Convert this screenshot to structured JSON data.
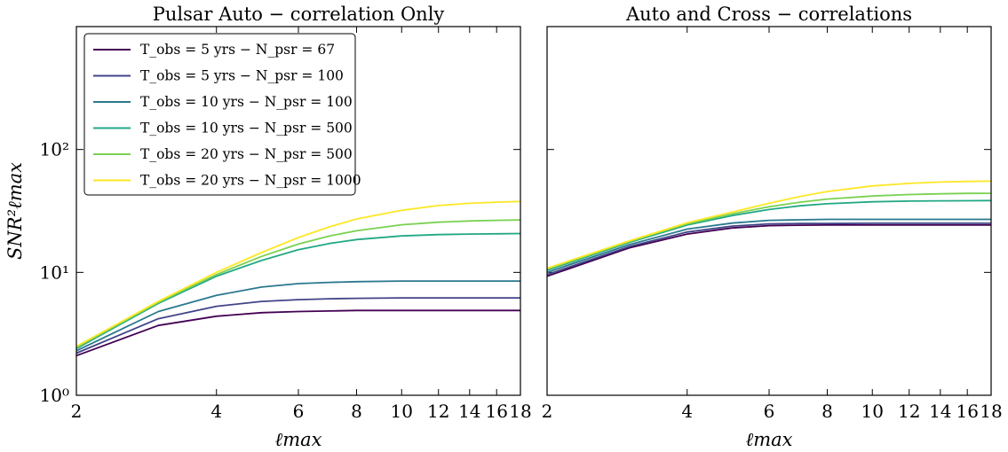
{
  "legend": {
    "entries": [
      "T_obs = 5 yrs − N_psr = 67",
      "T_obs = 5 yrs − N_psr = 100",
      "T_obs = 10 yrs − N_psr = 100",
      "T_obs = 10 yrs − N_psr = 500",
      "T_obs = 20 yrs − N_psr = 500",
      "T_obs = 20 yrs − N_psr = 1000"
    ],
    "placement": "upper-left of left panel"
  },
  "chart_data": [
    {
      "type": "line",
      "title": "Pulsar Auto − correlation Only",
      "xlabel": "ℓmax",
      "ylabel": "SNR²ℓmax",
      "xscale": "log",
      "yscale": "log",
      "xlim": [
        2,
        18
      ],
      "ylim": [
        1,
        1000
      ],
      "xticks": [
        "2",
        "4",
        "6",
        "8",
        "10",
        "12",
        "14",
        "16",
        "18"
      ],
      "yticks": [
        "10⁰",
        "10¹",
        "10²"
      ],
      "grid": false,
      "x": [
        2,
        3,
        4,
        5,
        6,
        7,
        8,
        10,
        12,
        14,
        16,
        18
      ],
      "series": [
        {
          "name": "T_obs = 5 yrs − N_psr = 67",
          "color": "#440154",
          "values": [
            2.1,
            3.7,
            4.4,
            4.7,
            4.8,
            4.85,
            4.9,
            4.9,
            4.9,
            4.9,
            4.9,
            4.9
          ]
        },
        {
          "name": "T_obs = 5 yrs − N_psr = 100",
          "color": "#414487",
          "values": [
            2.2,
            4.2,
            5.3,
            5.8,
            6.0,
            6.1,
            6.15,
            6.2,
            6.2,
            6.2,
            6.2,
            6.2
          ]
        },
        {
          "name": "T_obs = 10 yrs − N_psr = 100",
          "color": "#2a788e",
          "values": [
            2.3,
            4.8,
            6.5,
            7.6,
            8.1,
            8.3,
            8.4,
            8.5,
            8.5,
            8.5,
            8.5,
            8.5
          ]
        },
        {
          "name": "T_obs = 10 yrs − N_psr = 500",
          "color": "#22a884",
          "values": [
            2.4,
            5.6,
            9.3,
            12.5,
            15.3,
            17.2,
            18.5,
            19.8,
            20.3,
            20.5,
            20.6,
            20.7
          ]
        },
        {
          "name": "T_obs = 20 yrs − N_psr = 500",
          "color": "#7ad151",
          "values": [
            2.45,
            5.7,
            9.6,
            13.5,
            17.0,
            19.8,
            21.8,
            24.4,
            25.6,
            26.2,
            26.5,
            26.7
          ]
        },
        {
          "name": "T_obs = 20 yrs − N_psr = 1000",
          "color": "#fde725",
          "values": [
            2.5,
            5.8,
            10.0,
            14.5,
            19.2,
            23.5,
            27.2,
            32.0,
            35.0,
            36.5,
            37.3,
            37.8
          ]
        }
      ]
    },
    {
      "type": "line",
      "title": "Auto and Cross − correlations",
      "xlabel": "ℓmax",
      "xscale": "log",
      "yscale": "log",
      "xlim": [
        2,
        18
      ],
      "ylim": [
        1,
        1000
      ],
      "xticks": [
        "2",
        "4",
        "6",
        "8",
        "10",
        "12",
        "14",
        "16",
        "18"
      ],
      "grid": false,
      "x": [
        2,
        3,
        4,
        5,
        6,
        7,
        8,
        10,
        12,
        14,
        16,
        18
      ],
      "series": [
        {
          "name": "T_obs = 5 yrs − N_psr = 67",
          "color": "#440154",
          "values": [
            9.3,
            15.8,
            20.5,
            23.0,
            24.0,
            24.2,
            24.3,
            24.3,
            24.3,
            24.3,
            24.3,
            24.3
          ]
        },
        {
          "name": "T_obs = 5 yrs − N_psr = 100",
          "color": "#414487",
          "values": [
            9.6,
            16.2,
            21.3,
            23.8,
            24.8,
            25.0,
            25.0,
            25.1,
            25.1,
            25.1,
            25.1,
            25.1
          ]
        },
        {
          "name": "T_obs = 10 yrs − N_psr = 100",
          "color": "#2a788e",
          "values": [
            10.0,
            16.8,
            22.5,
            25.2,
            26.5,
            26.8,
            27.0,
            27.0,
            27.0,
            27.0,
            27.0,
            27.0
          ]
        },
        {
          "name": "T_obs = 10 yrs − N_psr = 500",
          "color": "#22a884",
          "values": [
            10.4,
            17.5,
            24.3,
            29.0,
            32.5,
            34.8,
            36.2,
            37.5,
            38.0,
            38.2,
            38.3,
            38.4
          ]
        },
        {
          "name": "T_obs = 20 yrs − N_psr = 500",
          "color": "#7ad151",
          "values": [
            10.6,
            17.8,
            24.8,
            30.0,
            34.2,
            37.3,
            39.5,
            41.8,
            43.0,
            43.6,
            43.9,
            44.0
          ]
        },
        {
          "name": "T_obs = 20 yrs − N_psr = 1000",
          "color": "#fde725",
          "values": [
            10.8,
            18.0,
            25.3,
            31.0,
            36.5,
            41.5,
            45.5,
            50.5,
            53.0,
            54.3,
            55.0,
            55.3
          ]
        }
      ]
    }
  ]
}
